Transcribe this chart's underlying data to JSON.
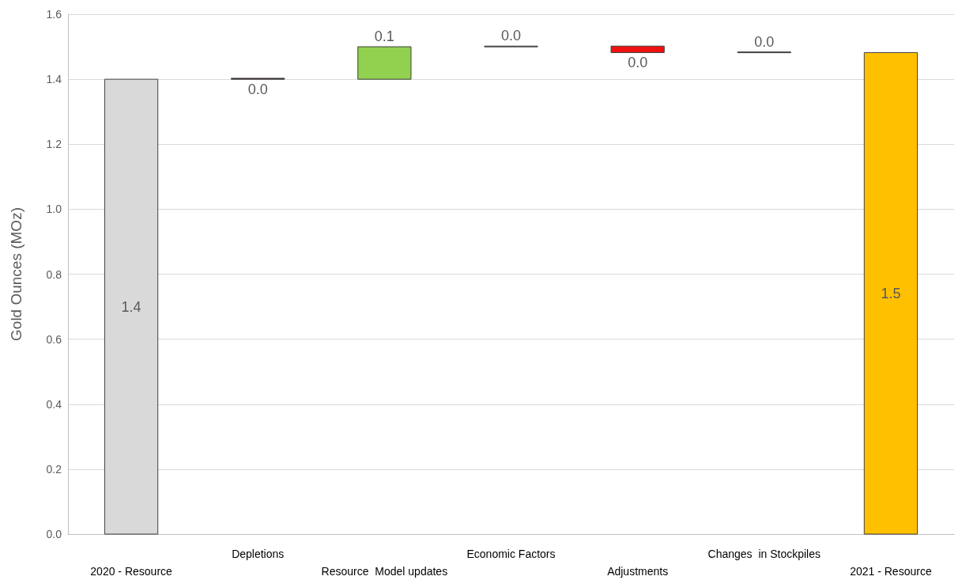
{
  "chart_data": {
    "type": "bar",
    "ylabel": "Gold Ounces (MOz)",
    "categories": [
      "2020 - Resource",
      "Depletions",
      "Resource  Model updates",
      "Economic Factors",
      "Adjustments",
      "Changes  in Stockpiles",
      "2021 - Resource"
    ],
    "values": [
      1.4,
      -0.003,
      0.1,
      0.002,
      -0.02,
      0.002,
      1.482
    ],
    "base": [
      0,
      1.403,
      1.4,
      1.5,
      1.502,
      1.482,
      0
    ],
    "colors": [
      "#d9d9d9",
      "#3a1e1e",
      "#92d050",
      "#7f7f7f",
      "#ee1111",
      "#404040",
      "#ffc000"
    ],
    "value_labels": [
      "1.4",
      "0.0",
      "0.1",
      "0.0",
      "0.0",
      "0.0",
      "1.5"
    ],
    "ylim": [
      0,
      1.6
    ],
    "yticks": [
      {
        "value": 0,
        "label": "0.0"
      },
      {
        "value": 0.2,
        "label": "0.2"
      },
      {
        "value": 0.4,
        "label": "0.4"
      },
      {
        "value": 0.6,
        "label": "0.6"
      },
      {
        "value": 0.8,
        "label": "0.8"
      },
      {
        "value": 1,
        "label": "1.0"
      },
      {
        "value": 1.2,
        "label": "1.2"
      },
      {
        "value": 1.4,
        "label": "1.4"
      },
      {
        "value": 1.6,
        "label": "1.6"
      }
    ],
    "grid": "y"
  }
}
